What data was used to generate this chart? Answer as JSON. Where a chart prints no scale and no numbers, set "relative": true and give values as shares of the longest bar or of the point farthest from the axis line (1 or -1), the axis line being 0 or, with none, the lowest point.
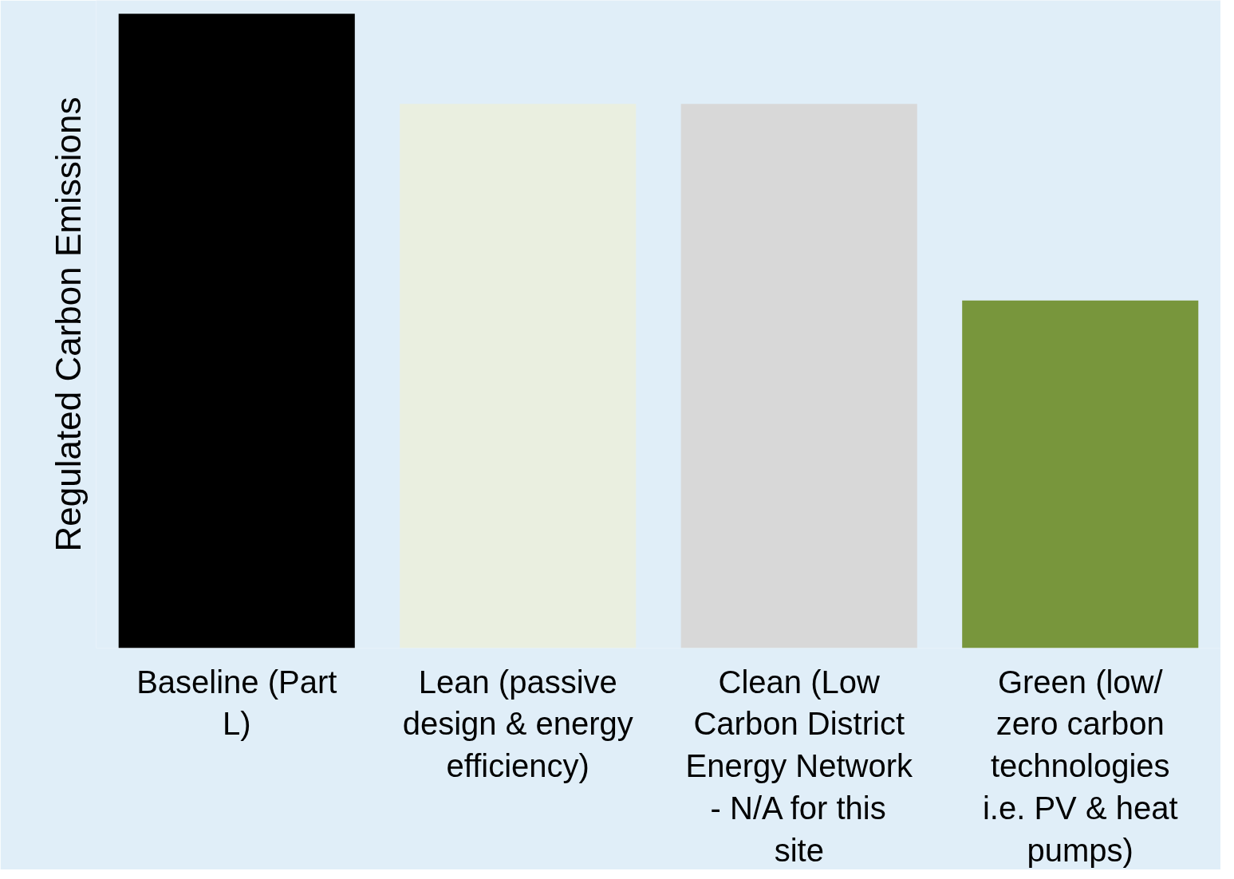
{
  "chart_data": {
    "type": "bar",
    "relative": true,
    "ylabel": "Regulated Carbon Emissions",
    "categories": [
      "Baseline (Part L)",
      "Lean (passive design & energy efficiency)",
      "Clean (Low Carbon District Energy Network - N/A for this site",
      "Green (low/ zero carbon technologies i.e. PV & heat pumps)"
    ],
    "values": [
      1,
      0.858,
      0.858,
      0.548
    ],
    "colors": [
      "#000000",
      "#eaefe0",
      "#d8d8d8",
      "#78963c"
    ]
  }
}
